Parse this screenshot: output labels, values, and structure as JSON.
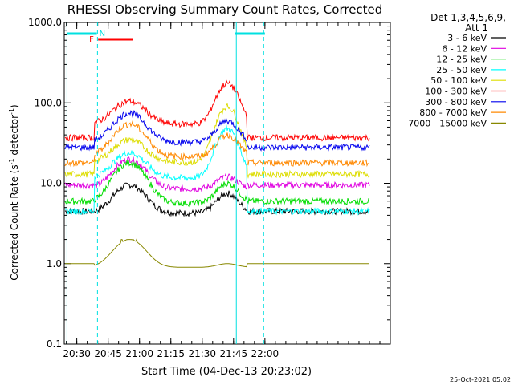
{
  "chart_data": {
    "type": "line",
    "title": "RHESSI Observing Summary Count Rates, Corrected",
    "xlabel": "Start Time (04-Dec-13 20:23:02)",
    "ylabel_main": "Corrected Count Rate (s",
    "ylabel_sup1": "-1",
    "ylabel_mid": " detector",
    "ylabel_sup2": "-1",
    "ylabel_end": ")",
    "y_scale": "log",
    "ylim": [
      0.1,
      1000
    ],
    "xlim_minutes": [
      20.4,
      23.0
    ],
    "y_ticks": [
      {
        "value": 1000,
        "label": "1000.0"
      },
      {
        "value": 100,
        "label": "100.0"
      },
      {
        "value": 10,
        "label": "10.0"
      },
      {
        "value": 1,
        "label": "1.0"
      },
      {
        "value": 0.1,
        "label": "0.1"
      }
    ],
    "x_ticks": [
      {
        "value": 20.5,
        "label": "20:30"
      },
      {
        "value": 20.75,
        "label": "20:45"
      },
      {
        "value": 21.0,
        "label": "21:00"
      },
      {
        "value": 21.25,
        "label": "21:15"
      },
      {
        "value": 21.5,
        "label": "21:30"
      },
      {
        "value": 21.75,
        "label": "21:45"
      },
      {
        "value": 22.0,
        "label": "22:00"
      }
    ],
    "legend_title_1": "Det 1,3,4,5,6,9,",
    "legend_title_2": "Att 1",
    "legend_position": "right",
    "series": [
      {
        "name": "3 - 6 keV",
        "color": "#000000",
        "base": 4.5,
        "peak1": 9.5,
        "peak2": 7.5
      },
      {
        "name": "6 - 12 keV",
        "color": "#e000e0",
        "base": 9.5,
        "peak1": 20,
        "peak2": 12
      },
      {
        "name": "12 - 25 keV",
        "color": "#00dd00",
        "base": 6,
        "peak1": 18,
        "peak2": 10
      },
      {
        "name": "25 - 50 keV",
        "color": "#00ffff",
        "base": 4.5,
        "peak1": 24,
        "peak2": 48
      },
      {
        "name": "50 - 100 keV",
        "color": "#dddd00",
        "base": 13,
        "peak1": 35,
        "peak2": 90
      },
      {
        "name": "100 - 300 keV",
        "color": "#ff0000",
        "base": 37,
        "peak1": 105,
        "peak2": 175
      },
      {
        "name": "300 - 800 keV",
        "color": "#0000ee",
        "base": 28,
        "peak1": 75,
        "peak2": 60
      },
      {
        "name": "800 - 7000 keV",
        "color": "#ff8800",
        "base": 18,
        "peak1": 55,
        "peak2": 40
      },
      {
        "name": "7000 - 15000 keV",
        "color": "#888800",
        "base": 1.0,
        "peak1": 2.0,
        "peak2": 1.0
      }
    ],
    "night_bars": [
      {
        "start": 20.42,
        "end": 20.66,
        "label": "N"
      },
      {
        "start": 21.76,
        "end": 22.0,
        "label": ""
      }
    ],
    "flare_bar": {
      "start": 20.67,
      "end": 20.95,
      "label": "F"
    },
    "cyan_lines": [
      20.422,
      20.665,
      21.772,
      21.99
    ],
    "solid_cyan": [
      20.422,
      21.772
    ],
    "timestamp": "25-Oct-2021 05:02"
  }
}
